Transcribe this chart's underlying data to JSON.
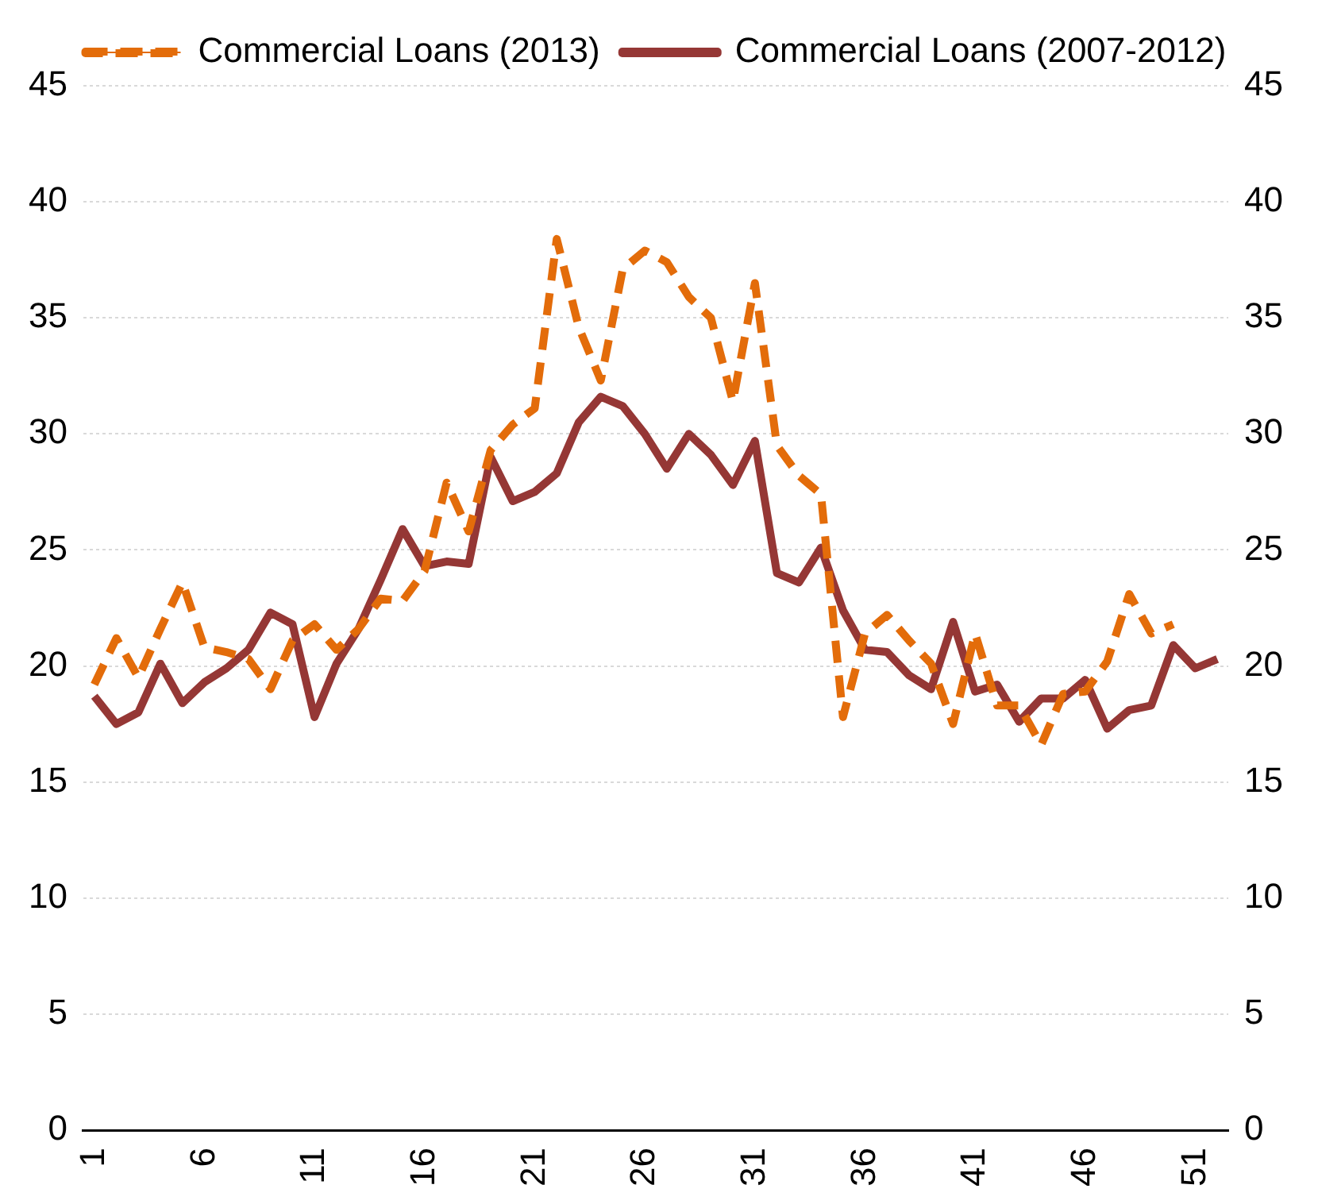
{
  "chart_data": {
    "type": "line",
    "categories": [
      "1",
      null,
      null,
      null,
      null,
      "6",
      null,
      null,
      null,
      null,
      "11",
      null,
      null,
      null,
      null,
      "16",
      null,
      null,
      null,
      null,
      "21",
      null,
      null,
      null,
      null,
      "26",
      null,
      null,
      null,
      null,
      "31",
      null,
      null,
      null,
      null,
      "36",
      null,
      null,
      null,
      null,
      "41",
      null,
      null,
      null,
      null,
      "46",
      null,
      null,
      null,
      null,
      "51",
      null
    ],
    "series": [
      {
        "name": "Commercial Loans (2013)",
        "color": "#e36c0a",
        "line_style": "dashed",
        "values": [
          19.2,
          21.2,
          19.5,
          21.6,
          23.6,
          20.8,
          20.6,
          20.3,
          19.0,
          21.1,
          21.8,
          20.7,
          21.6,
          22.9,
          22.8,
          24.1,
          27.9,
          25.8,
          29.3,
          30.4,
          31.1,
          38.4,
          34.6,
          32.3,
          37.1,
          37.9,
          37.4,
          35.9,
          35.0,
          31.4,
          36.5,
          29.5,
          28.2,
          27.4,
          17.8,
          21.4,
          22.2,
          21.1,
          20.1,
          17.5,
          21.4,
          18.3,
          18.3,
          16.6,
          18.8,
          18.9,
          20.2,
          23.1,
          21.4,
          21.8,
          null,
          null
        ]
      },
      {
        "name": "Commercial Loans (2007-2012)",
        "color": "#953735",
        "line_style": "solid",
        "values": [
          18.7,
          17.5,
          18.0,
          20.1,
          18.4,
          19.3,
          19.9,
          20.7,
          22.3,
          21.8,
          17.8,
          20.1,
          21.6,
          23.7,
          25.9,
          24.3,
          24.5,
          24.4,
          29.0,
          27.1,
          27.5,
          28.3,
          30.5,
          31.6,
          31.2,
          30.0,
          28.5,
          30.0,
          29.1,
          27.8,
          29.7,
          24.0,
          23.6,
          25.1,
          22.4,
          20.7,
          20.6,
          19.6,
          19.0,
          21.9,
          18.9,
          19.2,
          17.6,
          18.6,
          18.6,
          19.4,
          17.3,
          18.1,
          18.3,
          20.9,
          19.9,
          20.3
        ]
      }
    ],
    "ylim": [
      0,
      45
    ],
    "yticks": [
      0,
      5,
      10,
      15,
      20,
      25,
      30,
      35,
      40,
      45
    ],
    "y2lim": [
      0,
      45
    ],
    "y2ticks": [
      0,
      5,
      10,
      15,
      20,
      25,
      30,
      35,
      40,
      45
    ],
    "grid": "y",
    "legend": "top",
    "marker": "none"
  }
}
